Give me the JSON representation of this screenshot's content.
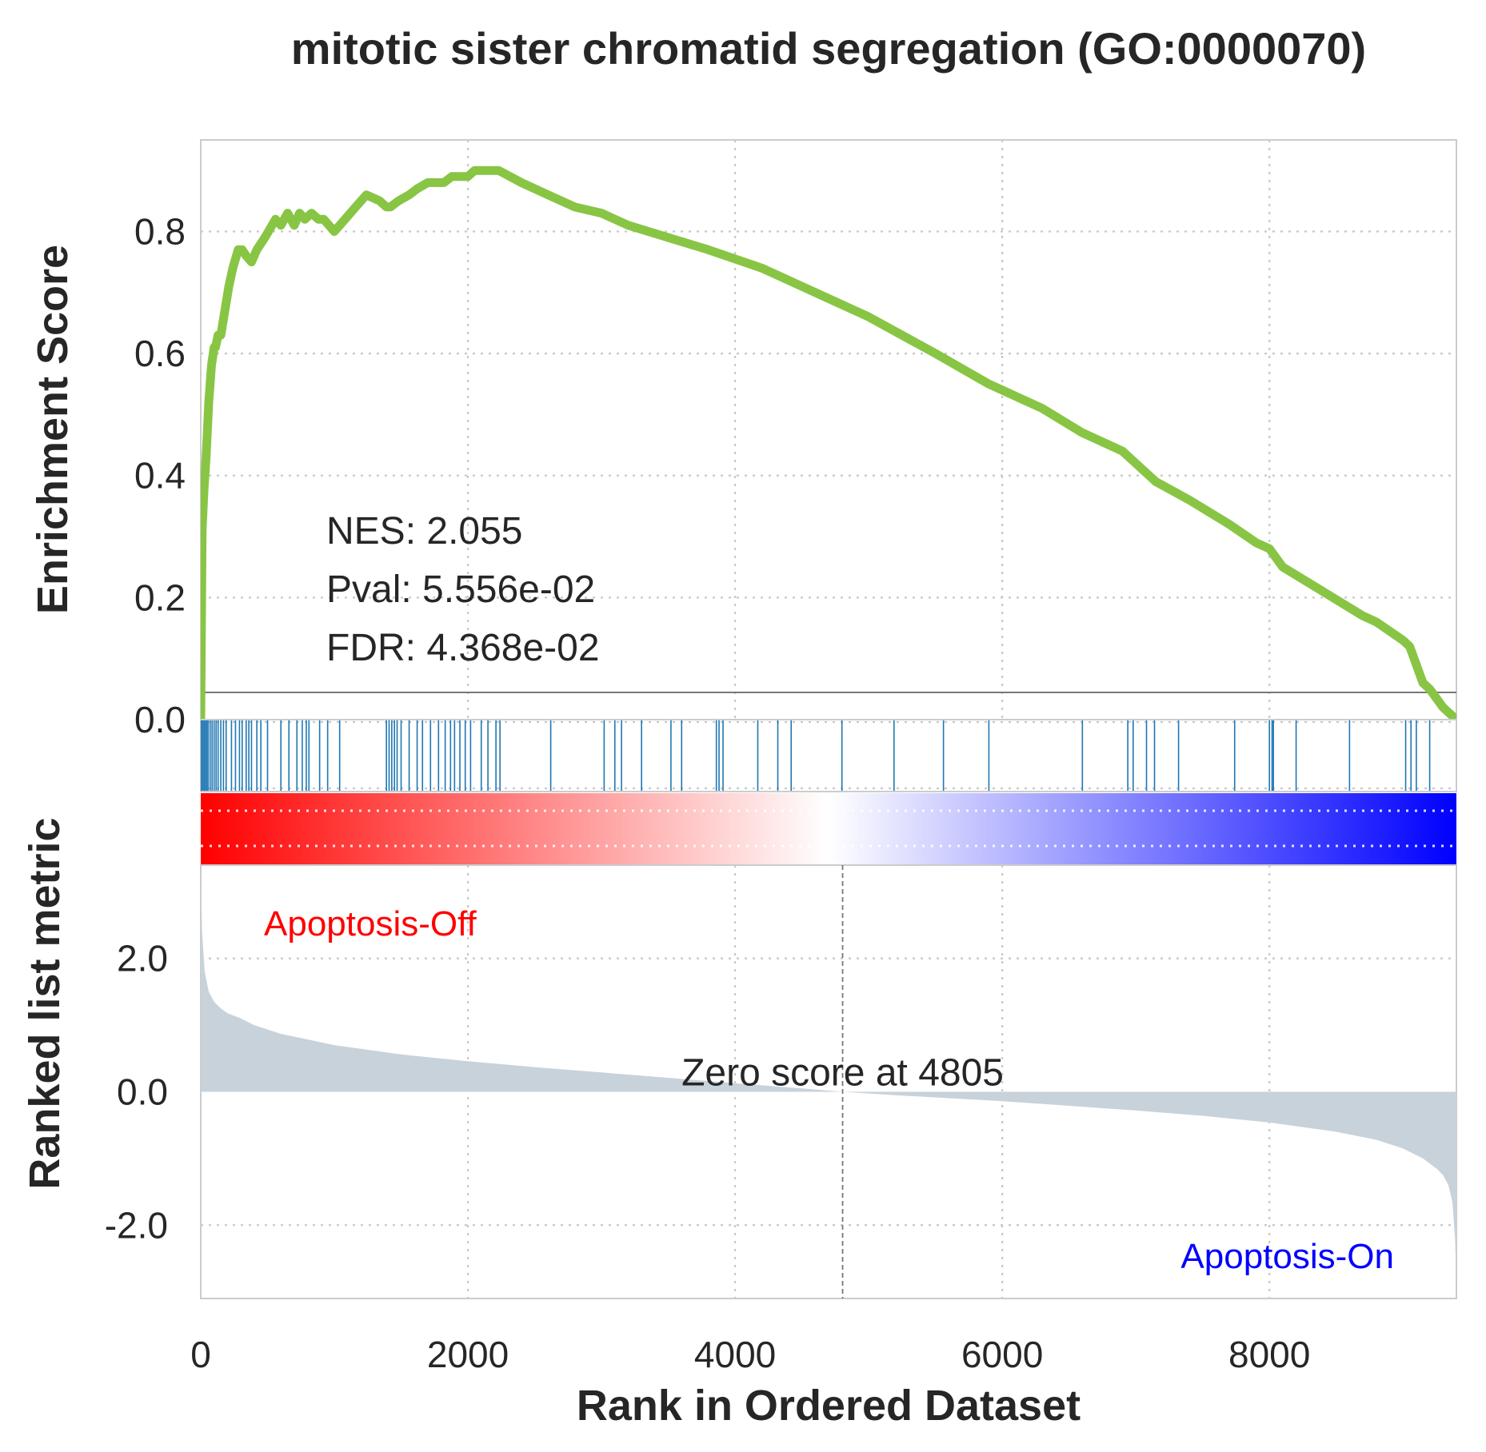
{
  "chart_data": {
    "type": "line",
    "title": "mitotic sister chromatid segregation (GO:0000070)",
    "xlabel": "Rank in Ordered Dataset",
    "xlim": [
      0,
      9400
    ],
    "x_ticks": [
      "0",
      "2000",
      "4000",
      "6000",
      "8000"
    ],
    "x_tick_values": [
      0,
      2000,
      4000,
      6000,
      8000
    ],
    "grid": true,
    "enrichment": {
      "ylabel": "Enrichment Score",
      "ylim": [
        0,
        0.95
      ],
      "y_ticks": [
        "0.0",
        "0.2",
        "0.4",
        "0.6",
        "0.8"
      ],
      "y_tick_values": [
        0,
        0.2,
        0.4,
        0.6,
        0.8
      ],
      "line_color": "#88c544",
      "series": [
        {
          "x": [
            0,
            10,
            25,
            40,
            60,
            80,
            100,
            110,
            130,
            150,
            180,
            210,
            240,
            280,
            310,
            340,
            380,
            420,
            480,
            560,
            600,
            650,
            700,
            740,
            780,
            830,
            880,
            920,
            960,
            1000,
            1080,
            1160,
            1240,
            1340,
            1390,
            1420,
            1480,
            1560,
            1620,
            1700,
            1760,
            1820,
            1880,
            1940,
            2000,
            2050,
            2100,
            2160,
            2230,
            2400,
            2600,
            2800,
            3000,
            3200,
            3500,
            3800,
            4200,
            4600,
            5000,
            5500,
            5900,
            6300,
            6600,
            6900,
            7000,
            7150,
            7400,
            7700,
            7900,
            8000,
            8100,
            8400,
            8700,
            8800,
            9000,
            9050,
            9150,
            9200,
            9300,
            9400
          ],
          "y": [
            0.0,
            0.31,
            0.38,
            0.43,
            0.52,
            0.58,
            0.61,
            0.61,
            0.63,
            0.63,
            0.67,
            0.71,
            0.74,
            0.77,
            0.77,
            0.76,
            0.75,
            0.77,
            0.79,
            0.82,
            0.81,
            0.83,
            0.81,
            0.83,
            0.82,
            0.83,
            0.82,
            0.82,
            0.81,
            0.8,
            0.82,
            0.84,
            0.86,
            0.85,
            0.84,
            0.84,
            0.85,
            0.86,
            0.87,
            0.88,
            0.88,
            0.88,
            0.89,
            0.89,
            0.89,
            0.9,
            0.9,
            0.9,
            0.9,
            0.88,
            0.86,
            0.84,
            0.83,
            0.81,
            0.79,
            0.77,
            0.74,
            0.7,
            0.66,
            0.6,
            0.55,
            0.51,
            0.47,
            0.44,
            0.42,
            0.39,
            0.36,
            0.32,
            0.29,
            0.28,
            0.25,
            0.21,
            0.17,
            0.16,
            0.13,
            0.12,
            0.06,
            0.05,
            0.02,
            0.0
          ]
        }
      ],
      "annotations": [
        "NES: 2.055",
        "Pval: 5.556e-02",
        "FDR: 4.368e-02"
      ]
    },
    "hits": {
      "color": "#1f77b4",
      "positions": [
        5,
        15,
        25,
        35,
        45,
        55,
        70,
        85,
        100,
        115,
        130,
        150,
        170,
        190,
        230,
        260,
        290,
        310,
        340,
        360,
        380,
        420,
        450,
        500,
        600,
        660,
        720,
        760,
        790,
        810,
        890,
        950,
        1040,
        1390,
        1410,
        1430,
        1450,
        1470,
        1500,
        1560,
        1620,
        1660,
        1720,
        1780,
        1830,
        1870,
        1900,
        1940,
        1980,
        2020,
        2100,
        2150,
        2210,
        2240,
        2620,
        3020,
        3100,
        3150,
        3300,
        3520,
        3600,
        3860,
        3880,
        3910,
        4170,
        4320,
        4420,
        4800,
        5190,
        5560,
        5900,
        6600,
        6940,
        6980,
        7080,
        7140,
        7320,
        7740,
        8000,
        8020,
        8030,
        8200,
        8600,
        9020,
        9060,
        9100,
        9200
      ]
    },
    "metric": {
      "ylabel": "Ranked list metric",
      "ylim": [
        -3.1,
        3.4
      ],
      "y_ticks": [
        "-2.0",
        "0.0",
        "2.0"
      ],
      "y_tick_values": [
        -2,
        0,
        2
      ],
      "fill_color": "#c8d2da",
      "zero_cross_rank": 4805,
      "zero_label": "Zero score at 4805",
      "curve": {
        "x": [
          0,
          10,
          30,
          60,
          100,
          150,
          200,
          300,
          400,
          600,
          1000,
          1500,
          2000,
          2500,
          3000,
          3500,
          4000,
          4500,
          4805,
          5200,
          6000,
          6500,
          7000,
          7500,
          8000,
          8500,
          8800,
          9000,
          9150,
          9250,
          9300,
          9340,
          9370,
          9390,
          9400
        ],
        "y": [
          3.3,
          2.4,
          1.8,
          1.5,
          1.35,
          1.25,
          1.18,
          1.1,
          1.0,
          0.87,
          0.7,
          0.56,
          0.46,
          0.37,
          0.29,
          0.21,
          0.13,
          0.05,
          0.0,
          -0.05,
          -0.14,
          -0.21,
          -0.28,
          -0.36,
          -0.46,
          -0.6,
          -0.72,
          -0.85,
          -1.0,
          -1.15,
          -1.25,
          -1.4,
          -1.65,
          -2.2,
          -2.9
        ]
      },
      "conditions": [
        {
          "label": "Apoptosis-Off",
          "color": "#ff0000"
        },
        {
          "label": "Apoptosis-On",
          "color": "#0000ff"
        }
      ],
      "gradient": {
        "from": "#ff0000",
        "mid": "#ffffff",
        "to": "#0000ff"
      }
    }
  }
}
